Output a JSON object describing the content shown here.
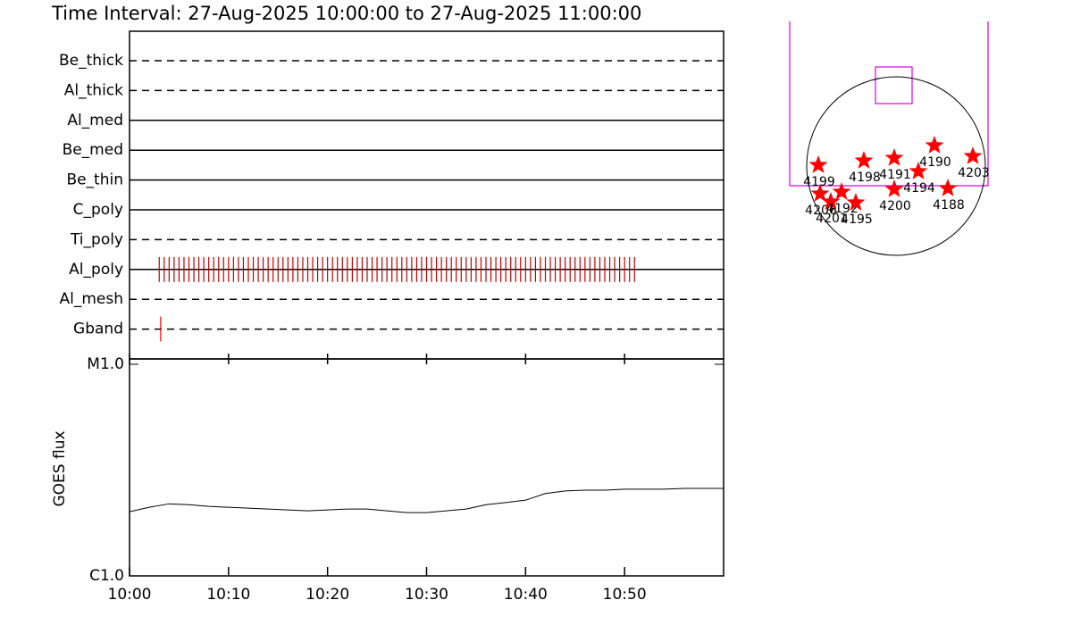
{
  "title": "Time Interval: 27-Aug-2025 10:00:00 to 27-Aug-2025 11:00:00",
  "chart_data": [
    {
      "type": "timeline",
      "xlim": [
        0,
        60
      ],
      "rows": [
        {
          "label": "Be_thick",
          "style": "dashed",
          "times": []
        },
        {
          "label": "Al_thick",
          "style": "dashed",
          "times": []
        },
        {
          "label": "Al_med",
          "style": "solid",
          "times": []
        },
        {
          "label": "Be_med",
          "style": "solid",
          "times": []
        },
        {
          "label": "Be_thin",
          "style": "solid",
          "times": []
        },
        {
          "label": "C_poly",
          "style": "solid",
          "times": []
        },
        {
          "label": "Ti_poly",
          "style": "dashed",
          "times": []
        },
        {
          "label": "Al_poly",
          "style": "solid",
          "color": "#c00000",
          "times": [
            3,
            3.5,
            4,
            4.5,
            5,
            5.5,
            6,
            6.5,
            7,
            7.5,
            8,
            8.5,
            9,
            9.5,
            10,
            10.5,
            11,
            11.5,
            12,
            12.5,
            13,
            13.5,
            14,
            14.5,
            15,
            15.5,
            16,
            16.5,
            17,
            17.5,
            18,
            18.5,
            19,
            19.5,
            20,
            20.5,
            21,
            21.5,
            22,
            22.5,
            23,
            23.5,
            24,
            24.5,
            25,
            25.5,
            26,
            26.5,
            27,
            27.5,
            28,
            28.5,
            29,
            29.5,
            30,
            30.5,
            31,
            31.5,
            32,
            32.5,
            33,
            33.5,
            34,
            34.5,
            35,
            35.5,
            36,
            36.5,
            37,
            37.5,
            38,
            38.5,
            39,
            39.5,
            40,
            40.5,
            41,
            41.5,
            42,
            42.5,
            43,
            43.5,
            44,
            44.5,
            45,
            45.5,
            46,
            46.5,
            47,
            47.5,
            48,
            48.5,
            49,
            49.5,
            50,
            50.5,
            51
          ]
        },
        {
          "label": "Al_mesh",
          "style": "dashed",
          "times": []
        },
        {
          "label": "Gband",
          "style": "dashed",
          "color": "#e00000",
          "times": [
            3.15
          ]
        }
      ]
    },
    {
      "type": "line",
      "ylabel": "GOES flux",
      "log": true,
      "color": "#000000",
      "xlim": [
        0,
        60
      ],
      "xticks": [
        {
          "value": 0,
          "label": "10:00"
        },
        {
          "value": 10,
          "label": "10:10"
        },
        {
          "value": 20,
          "label": "10:20"
        },
        {
          "value": 30,
          "label": "10:30"
        },
        {
          "value": 40,
          "label": "10:40"
        },
        {
          "value": 50,
          "label": "10:50"
        }
      ],
      "ylim": [
        1e-06,
        1e-05
      ],
      "yticks": [
        {
          "value": 1e-06,
          "label": "C1.0"
        },
        {
          "value": 1e-05,
          "label": "M1.0"
        }
      ],
      "x": [
        0,
        2,
        4,
        6,
        8,
        10,
        12,
        14,
        16,
        18,
        20,
        22,
        24,
        26,
        28,
        30,
        32,
        34,
        36,
        38,
        40,
        42,
        44,
        46,
        48,
        50,
        52,
        54,
        56,
        58,
        60
      ],
      "values": [
        2.01e-06,
        2.11e-06,
        2.19e-06,
        2.17e-06,
        2.13e-06,
        2.11e-06,
        2.09e-06,
        2.07e-06,
        2.05e-06,
        2.03e-06,
        2.05e-06,
        2.07e-06,
        2.07e-06,
        2.03e-06,
        1.99e-06,
        1.99e-06,
        2.03e-06,
        2.07e-06,
        2.17e-06,
        2.22e-06,
        2.28e-06,
        2.45e-06,
        2.52e-06,
        2.54e-06,
        2.54e-06,
        2.57e-06,
        2.57e-06,
        2.57e-06,
        2.59e-06,
        2.59e-06,
        2.59e-06
      ]
    },
    {
      "type": "scatter",
      "color": "#ff0000",
      "labels": [
        "4199",
        "4198",
        "4191",
        "4190",
        "4203",
        "4194",
        "4188",
        "4200",
        "4206",
        "4201",
        "4192",
        "4195"
      ],
      "x": [
        -0.87,
        -0.36,
        -0.02,
        0.43,
        0.86,
        0.25,
        0.58,
        -0.02,
        -0.85,
        -0.73,
        -0.61,
        -0.45
      ],
      "y": [
        0.01,
        0.06,
        0.09,
        0.23,
        0.11,
        -0.06,
        -0.25,
        -0.26,
        -0.31,
        -0.4,
        -0.29,
        -0.41
      ]
    }
  ]
}
